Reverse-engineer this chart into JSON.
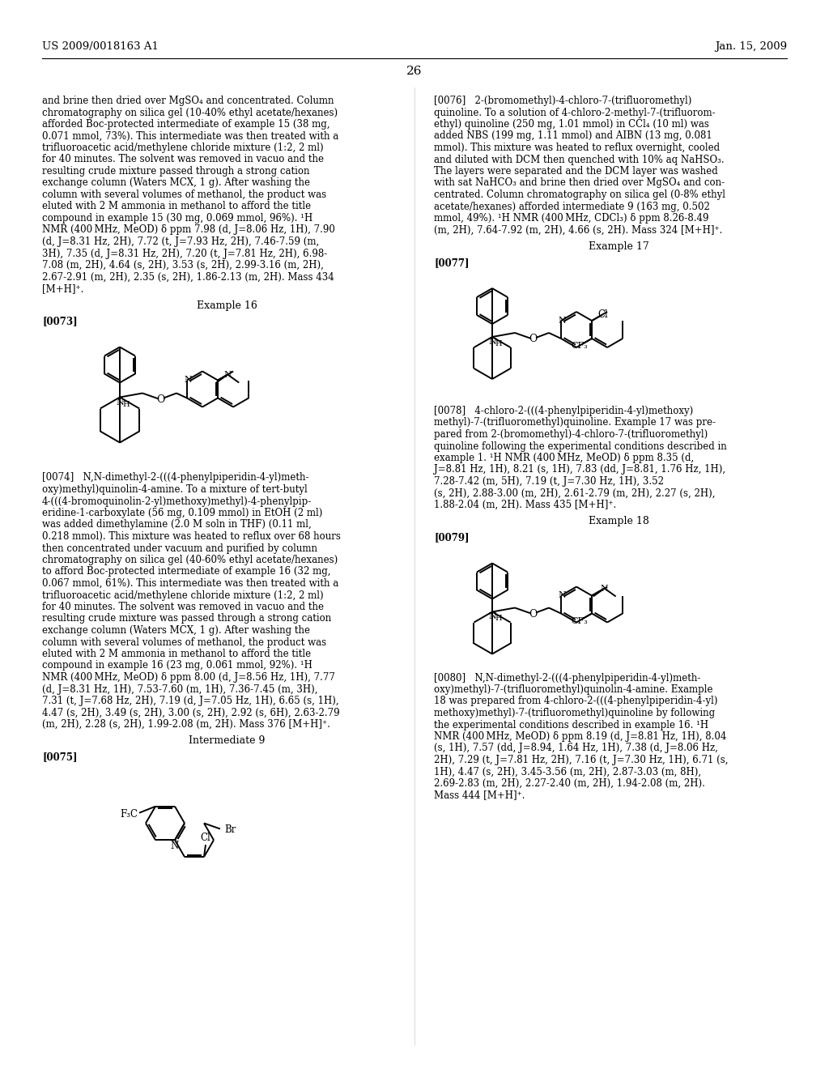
{
  "background_color": "#ffffff",
  "header_left": "US 2009/0018163 A1",
  "header_right": "Jan. 15, 2009",
  "page_number": "26",
  "left_col_lines": [
    "and brine then dried over MgSO₄ and concentrated. Column",
    "chromatography on silica gel (10-40% ethyl acetate/hexanes)",
    "afforded Boc-protected intermediate of example 15 (38 mg,",
    "0.071 mmol, 73%). This intermediate was then treated with a",
    "trifluoroacetic acid/methylene chloride mixture (1:2, 2 ml)",
    "for 40 minutes. The solvent was removed in vacuo and the",
    "resulting crude mixture passed through a strong cation",
    "exchange column (Waters MCX, 1 g). After washing the",
    "column with several volumes of methanol, the product was",
    "eluted with 2 M ammonia in methanol to afford the title",
    "compound in example 15 (30 mg, 0.069 mmol, 96%). ¹H",
    "NMR (400 MHz, MeOD) δ ppm 7.98 (d, J=8.06 Hz, 1H), 7.90",
    "(d, J=8.31 Hz, 2H), 7.72 (t, J=7.93 Hz, 2H), 7.46-7.59 (m,",
    "3H), 7.35 (d, J=8.31 Hz, 2H), 7.20 (t, J=7.81 Hz, 2H), 6.98-",
    "7.08 (m, 2H), 4.64 (s, 2H), 3.53 (s, 2H), 2.99-3.16 (m, 2H),",
    "2.67-2.91 (m, 2H), 2.35 (s, 2H), 1.86-2.13 (m, 2H). Mass 434",
    "[M+H]⁺."
  ],
  "example16_label": "Example 16",
  "para0073_label": "[0073]",
  "para0074_lines": [
    "[0074]   N,N-dimethyl-2-(((4-phenylpiperidin-4-yl)meth-",
    "oxy)methyl)quinolin-4-amine. To a mixture of tert-butyl",
    "4-(((4-bromoquinolin-2-yl)methoxy)methyl)-4-phenylpip-",
    "eridine-1-carboxylate (56 mg, 0.109 mmol) in EtOH (2 ml)",
    "was added dimethylamine (2.0 M soln in THF) (0.11 ml,",
    "0.218 mmol). This mixture was heated to reflux over 68 hours",
    "then concentrated under vacuum and purified by column",
    "chromatography on silica gel (40-60% ethyl acetate/hexanes)",
    "to afford Boc-protected intermediate of example 16 (32 mg,",
    "0.067 mmol, 61%). This intermediate was then treated with a",
    "trifluoroacetic acid/methylene chloride mixture (1:2, 2 ml)",
    "for 40 minutes. The solvent was removed in vacuo and the",
    "resulting crude mixture was passed through a strong cation",
    "exchange column (Waters MCX, 1 g). After washing the",
    "column with several volumes of methanol, the product was",
    "eluted with 2 M ammonia in methanol to afford the title",
    "compound in example 16 (23 mg, 0.061 mmol, 92%). ¹H",
    "NMR (400 MHz, MeOD) δ ppm 8.00 (d, J=8.56 Hz, 1H), 7.77",
    "(d, J=8.31 Hz, 1H), 7.53-7.60 (m, 1H), 7.36-7.45 (m, 3H),",
    "7.31 (t, J=7.68 Hz, 2H), 7.19 (d, J=7.05 Hz, 1H), 6.65 (s, 1H),",
    "4.47 (s, 2H), 3.49 (s, 2H), 3.00 (s, 2H), 2.92 (s, 6H), 2.63-2.79",
    "(m, 2H), 2.28 (s, 2H), 1.99-2.08 (m, 2H). Mass 376 [M+H]⁺."
  ],
  "intermediate9_label": "Intermediate 9",
  "para0075_label": "[0075]",
  "right_col_para0076_lines": [
    "[0076]   2-(bromomethyl)-4-chloro-7-(trifluoromethyl)",
    "quinoline. To a solution of 4-chloro-2-methyl-7-(trifluorom-",
    "ethyl) quinoline (250 mg, 1.01 mmol) in CCl₄ (10 ml) was",
    "added NBS (199 mg, 1.11 mmol) and AIBN (13 mg, 0.081",
    "mmol). This mixture was heated to reflux overnight, cooled",
    "and diluted with DCM then quenched with 10% aq NaHSO₃.",
    "The layers were separated and the DCM layer was washed",
    "with sat NaHCO₃ and brine then dried over MgSO₄ and con-",
    "centrated. Column chromatography on silica gel (0-8% ethyl",
    "acetate/hexanes) afforded intermediate 9 (163 mg, 0.502",
    "mmol, 49%). ¹H NMR (400 MHz, CDCl₃) δ ppm 8.26-8.49",
    "(m, 2H), 7.64-7.92 (m, 2H), 4.66 (s, 2H). Mass 324 [M+H]⁺."
  ],
  "example17_label": "Example 17",
  "para0077_label": "[0077]",
  "right_col_para0078_lines": [
    "[0078]   4-chloro-2-(((4-phenylpiperidin-4-yl)methoxy)",
    "methyl)-7-(trifluoromethyl)quinoline. Example 17 was pre-",
    "pared from 2-(bromomethyl)-4-chloro-7-(trifluoromethyl)",
    "quinoline following the experimental conditions described in",
    "example 1. ¹H NMR (400 MHz, MeOD) δ ppm 8.35 (d,",
    "J=8.81 Hz, 1H), 8.21 (s, 1H), 7.83 (dd, J=8.81, 1.76 Hz, 1H),",
    "7.28-7.42 (m, 5H), 7.19 (t, J=7.30 Hz, 1H), 3.52",
    "(s, 2H), 2.88-3.00 (m, 2H), 2.61-2.79 (m, 2H), 2.27 (s, 2H),",
    "1.88-2.04 (m, 2H). Mass 435 [M+H]⁺."
  ],
  "example18_label": "Example 18",
  "para0079_label": "[0079]",
  "right_col_para0080_lines": [
    "[0080]   N,N-dimethyl-2-(((4-phenylpiperidin-4-yl)meth-",
    "oxy)methyl)-7-(trifluoromethyl)quinolin-4-amine. Example",
    "18 was prepared from 4-chloro-2-(((4-phenylpiperidin-4-yl)",
    "methoxy)methyl)-7-(trifluoromethyl)quinoline by following",
    "the experimental conditions described in example 16. ¹H",
    "NMR (400 MHz, MeOD) δ ppm 8.19 (d, J=8.81 Hz, 1H), 8.04",
    "(s, 1H), 7.57 (dd, J=8.94, 1.64 Hz, 1H), 7.38 (d, J=8.06 Hz,",
    "2H), 7.29 (t, J=7.81 Hz, 2H), 7.16 (t, J=7.30 Hz, 1H), 6.71 (s,",
    "1H), 4.47 (s, 2H), 3.45-3.56 (m, 2H), 2.87-3.03 (m, 8H),",
    "2.69-2.83 (m, 2H), 2.27-2.40 (m, 2H), 1.94-2.08 (m, 2H).",
    "Mass 444 [M+H]⁺."
  ]
}
